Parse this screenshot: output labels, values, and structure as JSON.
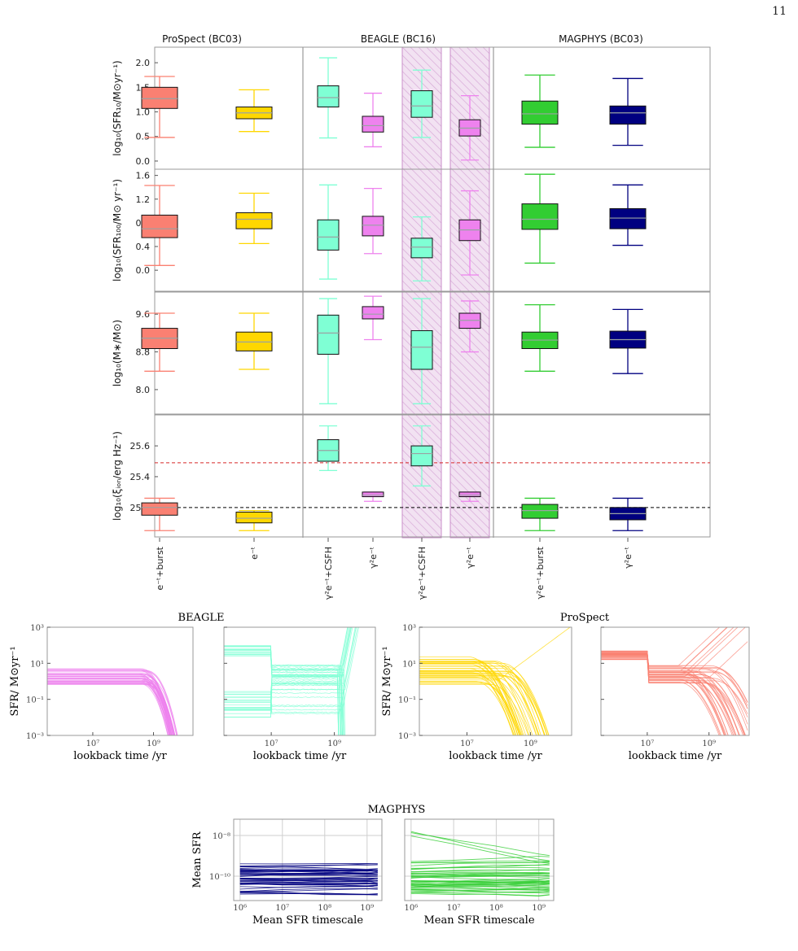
{
  "page_number": "11",
  "colors": {
    "prospect_burst": "#fa8072",
    "prospect_exp": "#ffd700",
    "beagle_csfh": "#7fffd4",
    "beagle_gamma": "#ee82ee",
    "magphys_burst": "#32cd32",
    "magphys_gamma": "#000080",
    "hatch": "#d8a8d8",
    "ref_red": "#d62728",
    "ref_black": "#000000"
  },
  "top_figure": {
    "group_titles": [
      "ProSpect (BC03)",
      "BEAGLE (BC16)",
      "MAGPHYS (BC03)"
    ],
    "categories": [
      "e⁻ᵗ+burst",
      "e⁻ᵗ",
      "γ²e⁻ᵗ+CSFH",
      "γ²e⁻ᵗ",
      "γ²e⁻ᵗ+CSFH",
      "γ²e⁻ᵗ",
      "γ²e⁻ᵗ+burst",
      "γ²e⁻ᵗ"
    ],
    "box_colors": [
      "#fa8072",
      "#ffd700",
      "#7fffd4",
      "#ee82ee",
      "#7fffd4",
      "#ee82ee",
      "#32cd32",
      "#000080"
    ],
    "hatched_positions": [
      4,
      5
    ],
    "panels": [
      {
        "ylabel": "log₁₀(SFR₁₀/M⊙yr⁻¹)",
        "ylim": [
          -0.1,
          2.25
        ],
        "ticks": [
          0.0,
          0.5,
          1.0,
          1.5,
          2.0
        ],
        "tick_labels": [
          "0.0",
          "0.5",
          "1.0",
          "1.5",
          "2.0"
        ],
        "boxes": [
          {
            "whislo": 0.48,
            "q1": 1.07,
            "med": 1.27,
            "q3": 1.5,
            "whishi": 1.72
          },
          {
            "whislo": 0.6,
            "q1": 0.86,
            "med": 0.98,
            "q3": 1.1,
            "whishi": 1.45
          },
          {
            "whislo": 0.47,
            "q1": 1.1,
            "med": 1.29,
            "q3": 1.53,
            "whishi": 2.1
          },
          {
            "whislo": 0.29,
            "q1": 0.59,
            "med": 0.72,
            "q3": 0.91,
            "whishi": 1.38
          },
          {
            "whislo": 0.48,
            "q1": 0.89,
            "med": 1.12,
            "q3": 1.43,
            "whishi": 1.85
          },
          {
            "whislo": 0.02,
            "q1": 0.51,
            "med": 0.67,
            "q3": 0.84,
            "whishi": 1.33
          },
          {
            "whislo": 0.28,
            "q1": 0.75,
            "med": 0.96,
            "q3": 1.22,
            "whishi": 1.75
          },
          {
            "whislo": 0.32,
            "q1": 0.75,
            "med": 0.98,
            "q3": 1.12,
            "whishi": 1.68
          }
        ],
        "reference_lines": []
      },
      {
        "ylabel": "log₁₀(SFR₁₀₀/M⊙ yr⁻¹)",
        "ylim": [
          -0.3,
          1.65
        ],
        "ticks": [
          0.0,
          0.4,
          0.8,
          1.2,
          1.6
        ],
        "tick_labels": [
          "0.0",
          "0.4",
          "0.8",
          "1.2",
          "1.6"
        ],
        "boxes": [
          {
            "whislo": 0.08,
            "q1": 0.55,
            "med": 0.7,
            "q3": 0.93,
            "whishi": 1.43
          },
          {
            "whislo": 0.45,
            "q1": 0.7,
            "med": 0.86,
            "q3": 0.97,
            "whishi": 1.3
          },
          {
            "whislo": -0.15,
            "q1": 0.34,
            "med": 0.56,
            "q3": 0.85,
            "whishi": 1.44
          },
          {
            "whislo": 0.28,
            "q1": 0.58,
            "med": 0.76,
            "q3": 0.91,
            "whishi": 1.38
          },
          {
            "whislo": -0.18,
            "q1": 0.21,
            "med": 0.39,
            "q3": 0.54,
            "whishi": 0.9
          },
          {
            "whislo": -0.08,
            "q1": 0.5,
            "med": 0.68,
            "q3": 0.85,
            "whishi": 1.34
          },
          {
            "whislo": 0.12,
            "q1": 0.69,
            "med": 0.86,
            "q3": 1.12,
            "whishi": 1.62
          },
          {
            "whislo": 0.42,
            "q1": 0.7,
            "med": 0.88,
            "q3": 1.04,
            "whishi": 1.44
          }
        ],
        "reference_lines": []
      },
      {
        "ylabel": "log₁₀(M∗/M⊙)",
        "ylim": [
          7.55,
          10.0
        ],
        "ticks": [
          8.0,
          8.8,
          9.6
        ],
        "tick_labels": [
          "8.0",
          "8.8",
          "9.6"
        ],
        "boxes": [
          {
            "whislo": 8.39,
            "q1": 8.87,
            "med": 9.09,
            "q3": 9.3,
            "whishi": 9.62
          },
          {
            "whislo": 8.43,
            "q1": 8.82,
            "med": 9.01,
            "q3": 9.22,
            "whishi": 9.62
          },
          {
            "whislo": 7.7,
            "q1": 8.75,
            "med": 9.2,
            "q3": 9.58,
            "whishi": 9.93
          },
          {
            "whislo": 9.06,
            "q1": 9.5,
            "med": 9.6,
            "q3": 9.76,
            "whishi": 9.98
          },
          {
            "whislo": 7.7,
            "q1": 8.43,
            "med": 8.9,
            "q3": 9.25,
            "whishi": 9.93
          },
          {
            "whislo": 8.8,
            "q1": 9.3,
            "med": 9.47,
            "q3": 9.62,
            "whishi": 9.88
          },
          {
            "whislo": 8.39,
            "q1": 8.87,
            "med": 9.05,
            "q3": 9.22,
            "whishi": 9.8
          },
          {
            "whislo": 8.34,
            "q1": 8.88,
            "med": 9.06,
            "q3": 9.24,
            "whishi": 9.7
          }
        ],
        "reference_lines": []
      },
      {
        "ylabel": "log₁₀(ξᵢₒₙ/erg Hz⁻¹)",
        "ylim": [
          25.03,
          25.78
        ],
        "ticks": [
          25.2,
          25.4,
          25.6
        ],
        "tick_labels": [
          "25.2",
          "25.4",
          "25.6"
        ],
        "boxes": [
          {
            "whislo": 25.05,
            "q1": 25.15,
            "med": 25.2,
            "q3": 25.23,
            "whishi": 25.26
          },
          {
            "whislo": 25.05,
            "q1": 25.1,
            "med": 25.13,
            "q3": 25.17,
            "whishi": 25.18
          },
          {
            "whislo": 25.44,
            "q1": 25.5,
            "med": 25.57,
            "q3": 25.64,
            "whishi": 25.73
          },
          {
            "whislo": 25.24,
            "q1": 25.27,
            "med": 25.28,
            "q3": 25.3,
            "whishi": 25.3
          },
          {
            "whislo": 25.34,
            "q1": 25.47,
            "med": 25.55,
            "q3": 25.6,
            "whishi": 25.73
          },
          {
            "whislo": 25.24,
            "q1": 25.27,
            "med": 25.28,
            "q3": 25.3,
            "whishi": 25.3
          },
          {
            "whislo": 25.05,
            "q1": 25.13,
            "med": 25.18,
            "q3": 25.22,
            "whishi": 25.26
          },
          {
            "whislo": 25.05,
            "q1": 25.12,
            "med": 25.16,
            "q3": 25.2,
            "whishi": 25.26
          }
        ],
        "reference_lines": [
          {
            "value": 25.49,
            "color": "#d62728"
          },
          {
            "value": 25.2,
            "color": "#000000"
          }
        ]
      }
    ]
  },
  "sfh_figure": {
    "group_titles": [
      "BEAGLE",
      "ProSpect"
    ],
    "ylabel": "SFR/ M⊙yr⁻¹",
    "xlabel": "lookback time /yr",
    "xtick_labels": [
      "10⁷",
      "10⁹"
    ],
    "ytick_labels": [
      "10³",
      "10¹",
      "10⁻¹",
      "10⁻³"
    ],
    "panel_colors": [
      "#ee82ee",
      "#7fffd4",
      "#ffd700",
      "#fa8072"
    ]
  },
  "magphys_figure": {
    "title": "MAGPHYS",
    "ylabel": "Mean SFR",
    "xlabel": "Mean SFR timescale",
    "xtick_labels": [
      "10⁶",
      "10⁷",
      "10⁸",
      "10⁹"
    ],
    "ytick_labels": [
      "10⁻⁸",
      "10⁻¹⁰"
    ],
    "panel_colors": [
      "#000080",
      "#32cd32"
    ]
  },
  "chart_data": [
    {
      "type": "box",
      "title": "",
      "ylabel": "log10(SFR10/M⊙yr⁻¹)",
      "categories": [
        "ProSpect e⁻ᵗ+burst",
        "ProSpect e⁻ᵗ",
        "BEAGLE γ²e⁻ᵗ+CSFH",
        "BEAGLE γ²e⁻ᵗ",
        "BEAGLE γ²e⁻ᵗ+CSFH (hatched)",
        "BEAGLE γ²e⁻ᵗ (hatched)",
        "MAGPHYS γ²e⁻ᵗ+burst",
        "MAGPHYS γ²e⁻ᵗ"
      ],
      "medians": [
        1.27,
        0.98,
        1.29,
        0.72,
        1.12,
        0.67,
        0.96,
        0.98
      ],
      "ylim": [
        -0.1,
        2.25
      ]
    },
    {
      "type": "box",
      "ylabel": "log10(SFR100/M⊙ yr⁻¹)",
      "medians": [
        0.7,
        0.86,
        0.56,
        0.76,
        0.39,
        0.68,
        0.86,
        0.88
      ],
      "ylim": [
        -0.3,
        1.65
      ]
    },
    {
      "type": "box",
      "ylabel": "log10(M∗/M⊙)",
      "medians": [
        9.09,
        9.01,
        9.2,
        9.6,
        8.9,
        9.47,
        9.05,
        9.06
      ],
      "ylim": [
        7.55,
        10.0
      ]
    },
    {
      "type": "box",
      "ylabel": "log10(ξ_ion/erg Hz⁻¹)",
      "medians": [
        25.2,
        25.13,
        25.57,
        25.28,
        25.55,
        25.28,
        25.18,
        25.16
      ],
      "ylim": [
        25.03,
        25.78
      ],
      "reference_lines": [
        25.49,
        25.2
      ]
    },
    {
      "type": "line",
      "title": "BEAGLE",
      "xlabel": "lookback time /yr",
      "ylabel": "SFR/ M⊙yr⁻¹",
      "x_scale": "log",
      "y_scale": "log",
      "ylim": [
        0.001,
        1000
      ]
    },
    {
      "type": "line",
      "title": "ProSpect",
      "xlabel": "lookback time /yr",
      "ylabel": "SFR/ M⊙yr⁻¹",
      "x_scale": "log",
      "y_scale": "log",
      "ylim": [
        0.001,
        1000
      ]
    },
    {
      "type": "line",
      "title": "MAGPHYS",
      "xlabel": "Mean SFR timescale",
      "ylabel": "Mean SFR",
      "x_scale": "log",
      "y_scale": "log",
      "grid": true
    }
  ]
}
